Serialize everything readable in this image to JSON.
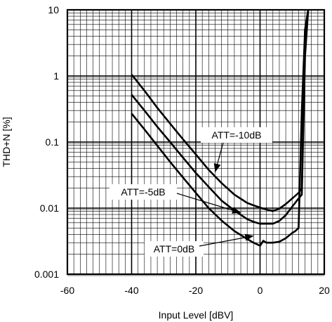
{
  "chart_data": {
    "type": "line",
    "title": "",
    "xlabel": "Input Level [dBV]",
    "ylabel": "THD+N [%]",
    "xlim": [
      -60,
      20
    ],
    "ylim": [
      0.001,
      10
    ],
    "y_scale": "log",
    "grid": true,
    "x_ticks": [
      "-60",
      "-40",
      "-20",
      "0",
      "20"
    ],
    "y_ticks": [
      "0.001",
      "0.01",
      "0.1",
      "1",
      "10"
    ],
    "series": [
      {
        "name": "ATT=-10dB",
        "x": [
          -40,
          -36,
          -32,
          -28,
          -24,
          -20,
          -16,
          -12,
          -8,
          -4,
          -2,
          0,
          2,
          4,
          6,
          8,
          10,
          12,
          13,
          14,
          15
        ],
        "y": [
          1.05,
          0.6,
          0.33,
          0.19,
          0.11,
          0.065,
          0.038,
          0.024,
          0.016,
          0.012,
          0.011,
          0.0102,
          0.0095,
          0.009,
          0.0098,
          0.0115,
          0.014,
          0.017,
          0.02,
          5.0,
          10.0
        ]
      },
      {
        "name": "ATT=-5dB",
        "x": [
          -40,
          -36,
          -32,
          -28,
          -24,
          -20,
          -16,
          -12,
          -8,
          -4,
          -2,
          0,
          2,
          4,
          6,
          8,
          10,
          12,
          13,
          14,
          15
        ],
        "y": [
          0.52,
          0.3,
          0.17,
          0.1,
          0.058,
          0.034,
          0.021,
          0.013,
          0.0092,
          0.0068,
          0.0062,
          0.0058,
          0.0058,
          0.0058,
          0.0064,
          0.0078,
          0.0105,
          0.014,
          0.016,
          2.0,
          10.0
        ]
      },
      {
        "name": "ATT=0dB",
        "x": [
          -40,
          -36,
          -32,
          -28,
          -24,
          -20,
          -16,
          -12,
          -8,
          -4,
          -2,
          0,
          1,
          2,
          4,
          6,
          8,
          10,
          11,
          12,
          13,
          14,
          15
        ],
        "y": [
          0.27,
          0.155,
          0.088,
          0.05,
          0.029,
          0.017,
          0.01,
          0.0065,
          0.0045,
          0.0034,
          0.003,
          0.0027,
          0.0032,
          0.003,
          0.003,
          0.0031,
          0.0035,
          0.0042,
          0.0045,
          0.005,
          0.3,
          5.0,
          10.0
        ]
      }
    ],
    "annotations": [
      {
        "text": "ATT=-10dB",
        "series": "ATT=-10dB",
        "arrow_to": [
          -14,
          0.035
        ]
      },
      {
        "text": "ATT=-5dB",
        "series": "ATT=-5dB",
        "arrow_to": [
          -6,
          0.0085
        ]
      },
      {
        "text": "ATT=0dB",
        "series": "ATT=0dB",
        "arrow_to": [
          -2,
          0.0038
        ]
      }
    ]
  }
}
